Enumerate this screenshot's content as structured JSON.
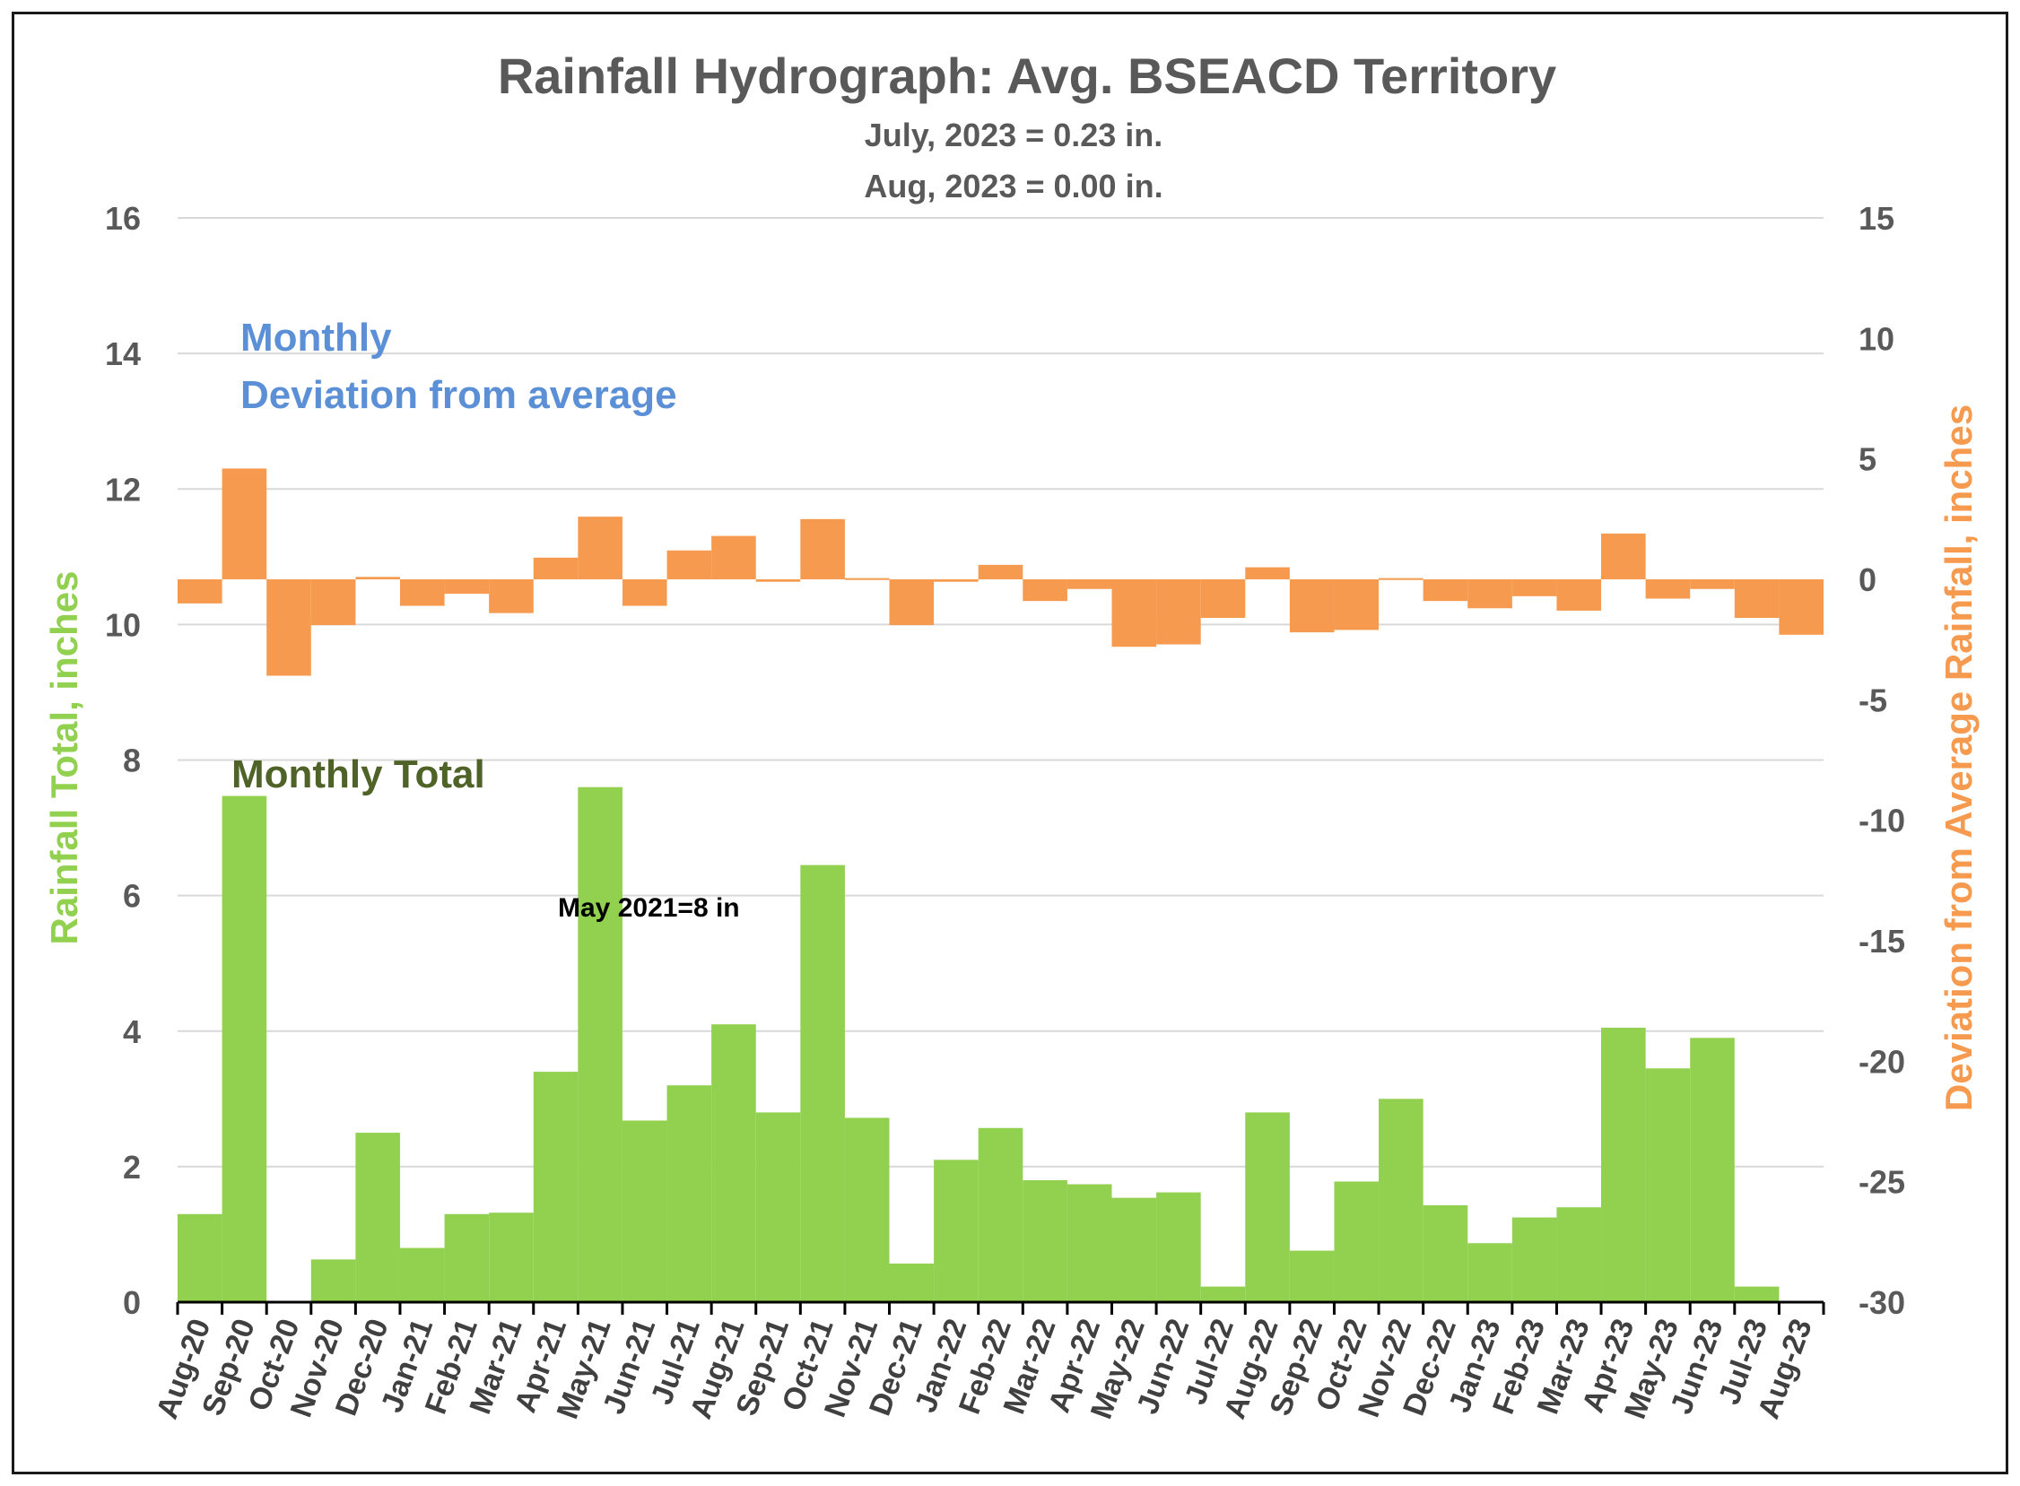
{
  "chart_data": {
    "type": "bar",
    "title": "Rainfall Hydrograph: Avg. BSEACD Territory",
    "subtitle_lines": [
      "July, 2023 = 0.23 in.",
      "Aug, 2023 = 0.00 in."
    ],
    "ylabel_left": "Rainfall Total, inches",
    "ylabel_right": "Deviation from Average Rainfall, inches",
    "ylim_left": [
      0,
      16
    ],
    "yticks_left": [
      0,
      2,
      4,
      6,
      8,
      10,
      12,
      14,
      16
    ],
    "ylim_right": [
      -30,
      15
    ],
    "yticks_right": [
      -30,
      -25,
      -20,
      -15,
      -10,
      -5,
      0,
      5,
      10,
      15
    ],
    "grid": true,
    "legend_text": {
      "monthly_line1": "Monthly",
      "monthly_line2": "Deviation from average",
      "total": "Monthly Total"
    },
    "annotation": "May 2021=8 in",
    "categories": [
      "Aug-20",
      "Sep-20",
      "Oct-20",
      "Nov-20",
      "Dec-20",
      "Jan-21",
      "Feb-21",
      "Mar-21",
      "Apr-21",
      "May-21",
      "Jun-21",
      "Jul-21",
      "Aug-21",
      "Sep-21",
      "Oct-21",
      "Nov-21",
      "Dec-21",
      "Jan-22",
      "Feb-22",
      "Mar-22",
      "Apr-22",
      "May-22",
      "Jun-22",
      "Jul-22",
      "Aug-22",
      "Sep-22",
      "Oct-22",
      "Nov-22",
      "Dec-22",
      "Jan-23",
      "Feb-23",
      "Mar-23",
      "Apr-23",
      "May-23",
      "Jun-23",
      "Jul-23",
      "Aug-23"
    ],
    "series": [
      {
        "name": "Monthly Total",
        "axis": "left",
        "color": "#92d050",
        "values": [
          1.3,
          7.47,
          0,
          0.63,
          2.5,
          0.8,
          1.3,
          1.32,
          3.4,
          7.6,
          2.68,
          3.2,
          4.1,
          2.8,
          6.45,
          2.72,
          0.57,
          2.1,
          2.57,
          1.8,
          1.74,
          1.54,
          1.62,
          0.23,
          2.8,
          0.76,
          1.78,
          3.0,
          1.43,
          0.87,
          1.25,
          1.4,
          4.05,
          3.45,
          3.9,
          0.23,
          0
        ]
      },
      {
        "name": "Deviation from average",
        "axis": "right",
        "color": "#f59a4e",
        "values": [
          -1.0,
          4.6,
          -4.0,
          -1.9,
          0.1,
          -1.1,
          -0.6,
          -1.4,
          0.9,
          2.6,
          -1.1,
          1.2,
          1.8,
          -0.1,
          2.5,
          0.05,
          -1.9,
          -0.1,
          0.6,
          -0.9,
          -0.4,
          -2.8,
          -2.7,
          -1.6,
          0.5,
          -2.2,
          -2.1,
          0.05,
          -0.9,
          -1.2,
          -0.7,
          -1.3,
          1.9,
          -0.8,
          -0.4,
          -1.6,
          -2.3
        ]
      }
    ]
  }
}
